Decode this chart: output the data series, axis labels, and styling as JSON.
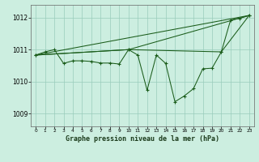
{
  "background_color": "#cceee0",
  "line_color": "#1a5c1a",
  "grid_color": "#99ccbb",
  "title": "Graphe pression niveau de la mer (hPa)",
  "xlabel_ticks": [
    0,
    1,
    2,
    3,
    4,
    5,
    6,
    7,
    8,
    9,
    10,
    11,
    12,
    13,
    14,
    15,
    16,
    17,
    18,
    19,
    20,
    21,
    22,
    23
  ],
  "yticks": [
    1009,
    1010,
    1011,
    1012
  ],
  "ylim": [
    1008.6,
    1012.4
  ],
  "xlim": [
    -0.5,
    23.5
  ],
  "series1": [
    [
      0,
      1010.83
    ],
    [
      1,
      1010.93
    ],
    [
      2,
      1011.0
    ],
    [
      3,
      1010.57
    ],
    [
      4,
      1010.65
    ],
    [
      5,
      1010.65
    ],
    [
      6,
      1010.63
    ],
    [
      7,
      1010.58
    ],
    [
      8,
      1010.58
    ],
    [
      9,
      1010.55
    ],
    [
      10,
      1011.0
    ],
    [
      11,
      1010.83
    ],
    [
      12,
      1009.73
    ],
    [
      13,
      1010.83
    ],
    [
      14,
      1010.57
    ],
    [
      15,
      1009.37
    ],
    [
      16,
      1009.55
    ],
    [
      17,
      1009.78
    ],
    [
      18,
      1010.4
    ],
    [
      19,
      1010.42
    ],
    [
      20,
      1010.93
    ],
    [
      21,
      1011.93
    ],
    [
      22,
      1011.98
    ],
    [
      23,
      1012.07
    ]
  ],
  "series2": [
    [
      0,
      1010.83
    ],
    [
      10,
      1011.0
    ],
    [
      20,
      1010.93
    ],
    [
      23,
      1012.07
    ]
  ],
  "series3": [
    [
      0,
      1010.83
    ],
    [
      10,
      1011.0
    ],
    [
      23,
      1012.07
    ]
  ],
  "series4": [
    [
      0,
      1010.83
    ],
    [
      23,
      1012.07
    ]
  ]
}
